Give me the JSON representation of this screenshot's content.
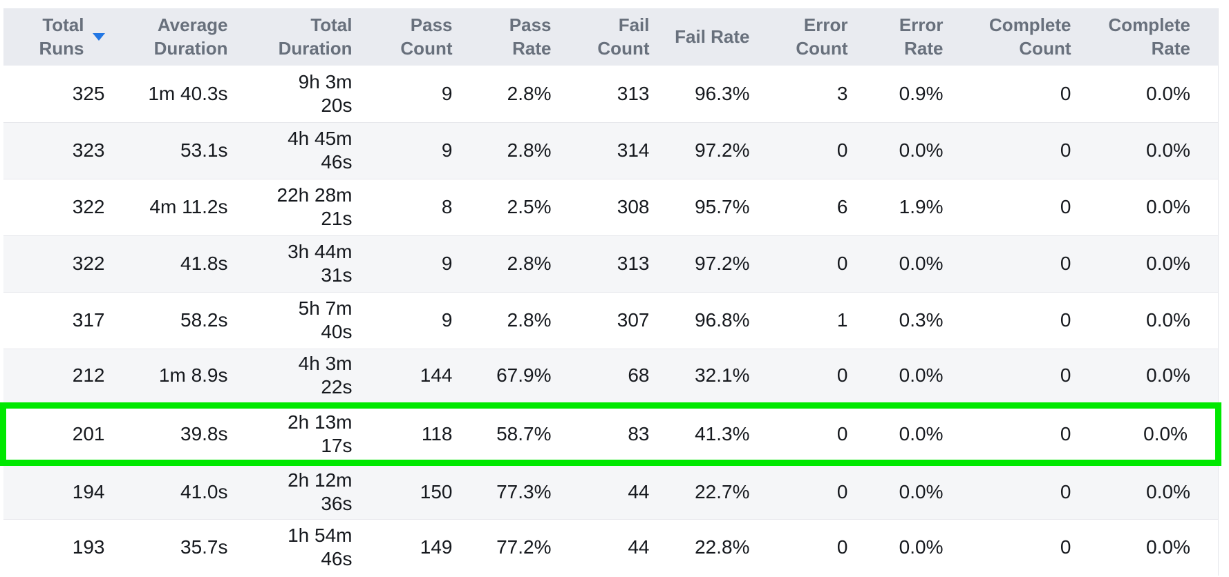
{
  "table": {
    "colors": {
      "header_bg": "#e9ebf0",
      "header_text": "#68707c",
      "row_alt_bg": "#f5f6f8",
      "row_text": "#16191e",
      "highlight_border": "#00e800",
      "sort_arrow": "#2377e4",
      "divider": "#e7e8ec"
    },
    "sort": {
      "column": "Total Runs",
      "direction": "descending"
    },
    "columns": [
      {
        "id": "total-runs",
        "label": "Total Runs"
      },
      {
        "id": "average-duration",
        "label": "Average Duration"
      },
      {
        "id": "total-duration",
        "label": "Total Duration"
      },
      {
        "id": "pass-count",
        "label": "Pass Count"
      },
      {
        "id": "pass-rate",
        "label": "Pass Rate"
      },
      {
        "id": "fail-count",
        "label": "Fail Count"
      },
      {
        "id": "fail-rate",
        "label": "Fail Rate"
      },
      {
        "id": "error-count",
        "label": "Error Count"
      },
      {
        "id": "error-rate",
        "label": "Error Rate"
      },
      {
        "id": "complete-count",
        "label": "Complete Count"
      },
      {
        "id": "complete-rate",
        "label": "Complete Rate"
      }
    ],
    "rows": [
      {
        "highlighted": false,
        "cells": [
          "325",
          "1m 40.3s",
          [
            "9h 3m",
            "20s"
          ],
          "9",
          "2.8%",
          "313",
          "96.3%",
          "3",
          "0.9%",
          "0",
          "0.0%"
        ]
      },
      {
        "highlighted": false,
        "cells": [
          "323",
          "53.1s",
          [
            "4h 45m",
            "46s"
          ],
          "9",
          "2.8%",
          "314",
          "97.2%",
          "0",
          "0.0%",
          "0",
          "0.0%"
        ]
      },
      {
        "highlighted": false,
        "cells": [
          "322",
          "4m 11.2s",
          [
            "22h 28m",
            "21s"
          ],
          "8",
          "2.5%",
          "308",
          "95.7%",
          "6",
          "1.9%",
          "0",
          "0.0%"
        ]
      },
      {
        "highlighted": false,
        "cells": [
          "322",
          "41.8s",
          [
            "3h 44m",
            "31s"
          ],
          "9",
          "2.8%",
          "313",
          "97.2%",
          "0",
          "0.0%",
          "0",
          "0.0%"
        ]
      },
      {
        "highlighted": false,
        "cells": [
          "317",
          "58.2s",
          [
            "5h 7m",
            "40s"
          ],
          "9",
          "2.8%",
          "307",
          "96.8%",
          "1",
          "0.3%",
          "0",
          "0.0%"
        ]
      },
      {
        "highlighted": false,
        "cells": [
          "212",
          "1m 8.9s",
          [
            "4h 3m",
            "22s"
          ],
          "144",
          "67.9%",
          "68",
          "32.1%",
          "0",
          "0.0%",
          "0",
          "0.0%"
        ]
      },
      {
        "highlighted": true,
        "cells": [
          "201",
          "39.8s",
          [
            "2h 13m",
            "17s"
          ],
          "118",
          "58.7%",
          "83",
          "41.3%",
          "0",
          "0.0%",
          "0",
          "0.0%"
        ]
      },
      {
        "highlighted": false,
        "cells": [
          "194",
          "41.0s",
          [
            "2h 12m",
            "36s"
          ],
          "150",
          "77.3%",
          "44",
          "22.7%",
          "0",
          "0.0%",
          "0",
          "0.0%"
        ]
      },
      {
        "highlighted": false,
        "cells": [
          "193",
          "35.7s",
          [
            "1h 54m",
            "46s"
          ],
          "149",
          "77.2%",
          "44",
          "22.8%",
          "0",
          "0.0%",
          "0",
          "0.0%"
        ]
      }
    ]
  }
}
